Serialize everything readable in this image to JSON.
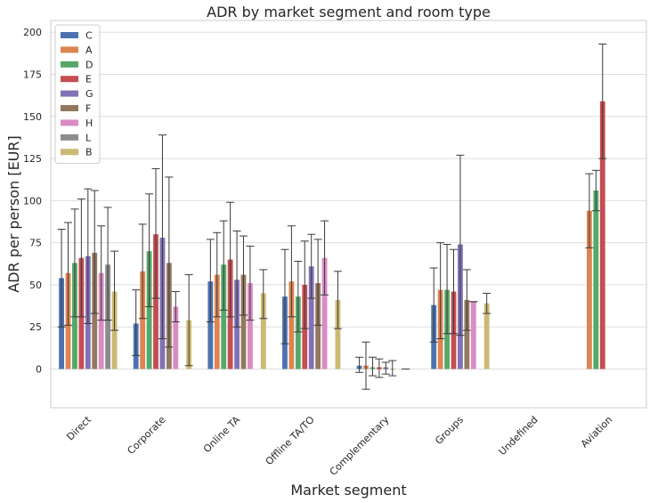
{
  "chart_data": {
    "type": "bar",
    "title": "ADR by market segment and room type",
    "xlabel": "Market segment",
    "ylabel": "ADR per person [EUR]",
    "ylim": [
      -23,
      207
    ],
    "yticks": [
      0,
      25,
      50,
      75,
      100,
      125,
      150,
      175,
      200
    ],
    "grid": "horizontal",
    "legend_position": "top-left",
    "categories": [
      "Direct",
      "Corporate",
      "Online TA",
      "Offline TA/TO",
      "Complementary",
      "Groups",
      "Undefined",
      "Aviation"
    ],
    "series": [
      {
        "name": "C",
        "color": "#4c72b0",
        "values": [
          54,
          27,
          52,
          43,
          2,
          38,
          null,
          null
        ],
        "err_low": [
          25,
          8,
          28,
          15,
          -2,
          16,
          null,
          null
        ],
        "err_high": [
          83,
          47,
          77,
          71,
          7,
          60,
          null,
          null
        ]
      },
      {
        "name": "A",
        "color": "#dd8452",
        "values": [
          57,
          58,
          56,
          52,
          2,
          47,
          null,
          94
        ],
        "err_low": [
          26,
          30,
          31,
          31,
          -12,
          18,
          null,
          72
        ],
        "err_high": [
          87,
          86,
          81,
          85,
          16,
          75,
          null,
          116
        ]
      },
      {
        "name": "D",
        "color": "#55a868",
        "values": [
          63,
          70,
          62,
          43,
          1,
          47,
          null,
          106
        ],
        "err_low": [
          31,
          37,
          35,
          22,
          -4,
          21,
          null,
          94
        ],
        "err_high": [
          95,
          104,
          88,
          64,
          7,
          74,
          null,
          118
        ]
      },
      {
        "name": "E",
        "color": "#c44e52",
        "values": [
          66,
          80,
          65,
          50,
          1,
          46,
          null,
          159
        ],
        "err_low": [
          31,
          42,
          31,
          24,
          -5,
          21,
          null,
          125
        ],
        "err_high": [
          101,
          119,
          99,
          76,
          6,
          71,
          null,
          193
        ]
      },
      {
        "name": "G",
        "color": "#8172b3",
        "values": [
          67,
          78,
          53,
          61,
          1,
          74,
          null,
          null
        ],
        "err_low": [
          27,
          18,
          25,
          42,
          -3,
          20,
          null,
          null
        ],
        "err_high": [
          107,
          139,
          82,
          80,
          4,
          127,
          null,
          null
        ]
      },
      {
        "name": "F",
        "color": "#937860",
        "values": [
          69,
          63,
          56,
          51,
          0,
          41,
          null,
          null
        ],
        "err_low": [
          33,
          13,
          32,
          26,
          -4,
          23,
          null,
          null
        ],
        "err_high": [
          106,
          114,
          79,
          77,
          5,
          59,
          null,
          null
        ]
      },
      {
        "name": "H",
        "color": "#da8bc3",
        "values": [
          57,
          37,
          51,
          66,
          null,
          40,
          null,
          null
        ],
        "err_low": [
          29,
          28,
          29,
          44,
          null,
          40,
          null,
          null
        ],
        "err_high": [
          85,
          46,
          73,
          88,
          null,
          40,
          null,
          null
        ]
      },
      {
        "name": "L",
        "color": "#8c8c8c",
        "values": [
          62,
          null,
          null,
          null,
          0,
          null,
          null,
          null
        ],
        "err_low": [
          29,
          null,
          null,
          null,
          0,
          null,
          null,
          null
        ],
        "err_high": [
          96,
          null,
          null,
          null,
          0,
          null,
          null,
          null
        ]
      },
      {
        "name": "B",
        "color": "#ccb974",
        "values": [
          46,
          29,
          45,
          41,
          null,
          39,
          null,
          null
        ],
        "err_low": [
          23,
          2,
          30,
          24,
          null,
          33,
          null,
          null
        ],
        "err_high": [
          70,
          56,
          59,
          58,
          null,
          45,
          null,
          null
        ]
      }
    ]
  }
}
